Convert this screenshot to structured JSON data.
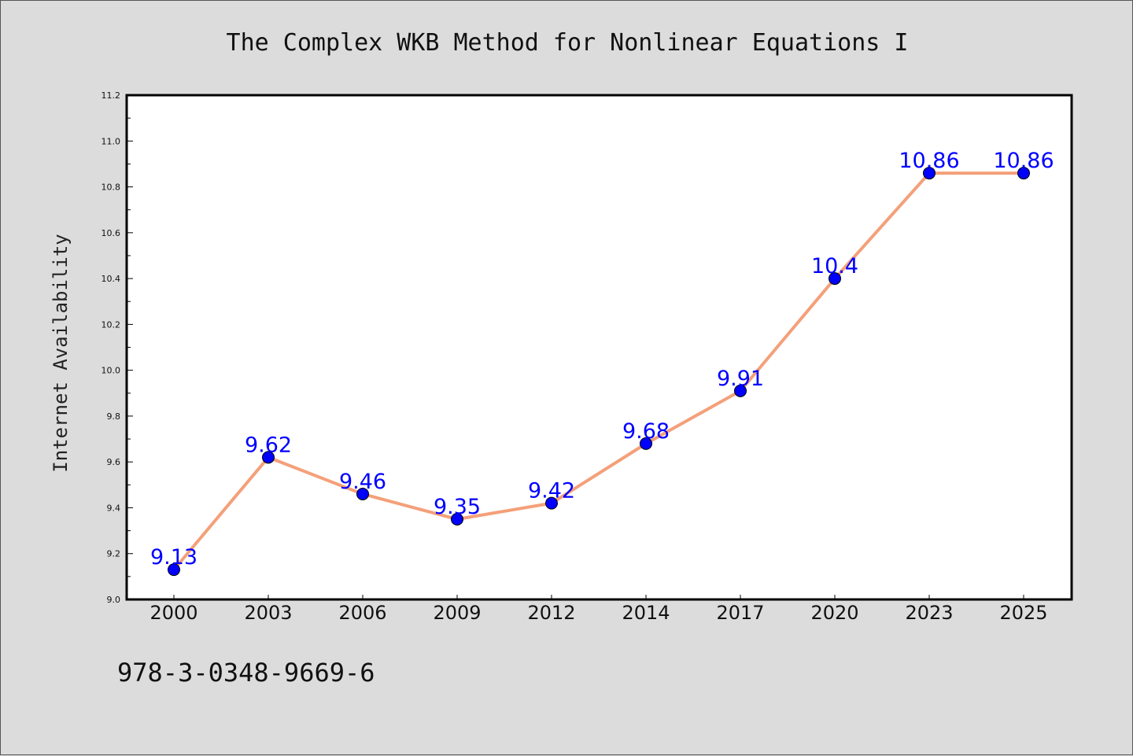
{
  "chart_data": {
    "type": "line",
    "title": "The Complex WKB Method for Nonlinear Equations I",
    "ylabel": "Internet Availability",
    "xlabel": "",
    "categories": [
      "2000",
      "2003",
      "2006",
      "2009",
      "2012",
      "2014",
      "2017",
      "2020",
      "2023",
      "2025"
    ],
    "series": [
      {
        "values": [
          9.13,
          9.62,
          9.46,
          9.35,
          9.42,
          9.68,
          9.91,
          10.4,
          10.86,
          10.86
        ],
        "labels": [
          "9.13",
          "9.62",
          "9.46",
          "9.35",
          "9.42",
          "9.68",
          "9.91",
          "10.4",
          "10.86",
          "10.86"
        ],
        "line_color": "#f4a07a",
        "marker_color": "#0000ff"
      }
    ],
    "ylim": [
      9.0,
      11.2
    ],
    "yticks": [
      "9.0",
      "9.2",
      "9.4",
      "9.6",
      "9.8",
      "10.0",
      "10.2",
      "10.4",
      "10.6",
      "10.8",
      "11.0",
      "11.2"
    ],
    "grid": false,
    "legend": "none"
  },
  "footer": {
    "code": "978-3-0348-9669-6"
  },
  "colors": {
    "background": "#dcdcdc",
    "plot_background": "#ffffff",
    "line": "#f4a07a",
    "marker": "#0000ff",
    "data_label": "#0000ff"
  }
}
